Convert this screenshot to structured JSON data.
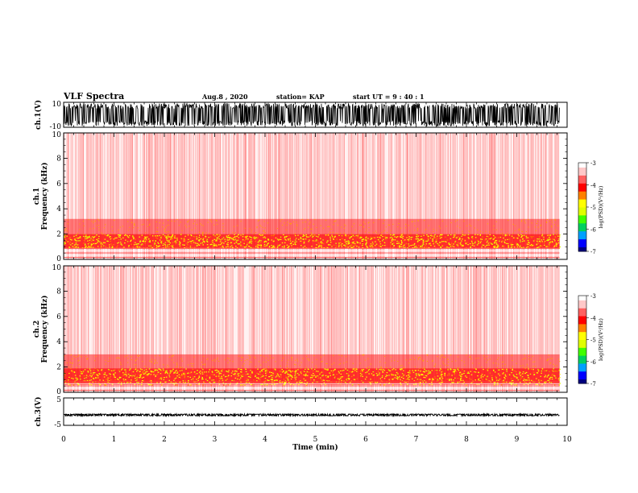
{
  "header": {
    "title": "VLF Spectra",
    "date": "Aug.8  , 2020",
    "station": "station= KAP",
    "start": "start  UT  =   9 : 40 : 1"
  },
  "colors": {
    "colormap": [
      "#000080",
      "#0000ff",
      "#00a0ff",
      "#00d060",
      "#40ff00",
      "#e0ff00",
      "#ffff00",
      "#ff8000",
      "#ff0000",
      "#ff6060",
      "#ffc8c8",
      "#ffffff"
    ],
    "spectrogram_background": "#ffffff",
    "trace": "#000000"
  },
  "chart_data": [
    {
      "type": "line",
      "name": "ch1-waveform",
      "ylabel": "ch.1(V)",
      "ylim": [
        -10,
        10
      ],
      "y_ticks": [
        "10",
        "-10"
      ],
      "xlim": [
        0,
        10
      ],
      "description_of_trace": "dense noise oscillation filling roughly -9 to +9 V, trace ends near x = 9.85",
      "amplitude": 9,
      "x_end": 9.85
    },
    {
      "type": "heatmap",
      "name": "ch1-spectrogram",
      "ylabel": "ch.1\nFrequency (kHz)",
      "ylabel_line1": "ch.1",
      "ylabel_line2": "Frequency  (kHz)",
      "ylim": [
        0,
        10
      ],
      "y_ticks": [
        "0",
        "2",
        "4",
        "6",
        "8",
        "10"
      ],
      "xlim": [
        0,
        10
      ],
      "x_end": 9.85,
      "colorbar": {
        "label": "log(PSD)(V²/Hz)",
        "range": [
          -7,
          -3
        ],
        "ticks": [
          "-3",
          "-4",
          "-5",
          "-6",
          "-7"
        ]
      },
      "intense_band_khz": [
        0.9,
        2.0
      ],
      "moderate_band_khz": [
        2.0,
        3.2
      ]
    },
    {
      "type": "heatmap",
      "name": "ch2-spectrogram",
      "ylabel_line1": "ch.2",
      "ylabel_line2": "Frequency  (kHz)",
      "ylim": [
        0,
        10
      ],
      "y_ticks": [
        "0",
        "2",
        "4",
        "6",
        "8",
        "10"
      ],
      "xlim": [
        0,
        10
      ],
      "x_end": 9.85,
      "colorbar": {
        "label": "log(PSD)(V²/Hz)",
        "range": [
          -7,
          -3
        ],
        "ticks": [
          "-3",
          "-4",
          "-5",
          "-6",
          "-7"
        ]
      },
      "intense_band_khz": [
        0.6,
        1.9
      ],
      "moderate_band_khz": [
        1.9,
        3.0
      ]
    },
    {
      "type": "line",
      "name": "ch3-waveform",
      "ylabel": "ch.3(V)",
      "ylim": [
        -5,
        5
      ],
      "y_ticks": [
        "5",
        "-5"
      ],
      "xlim": [
        0,
        10
      ],
      "x_end": 9.85,
      "description_of_trace": "near-constant band around -1 V",
      "center": -1.2,
      "amplitude": 0.35
    }
  ],
  "xaxis": {
    "label": "Time  (min)",
    "ticks": [
      "0",
      "1",
      "2",
      "3",
      "4",
      "5",
      "6",
      "7",
      "8",
      "9",
      "10"
    ]
  }
}
